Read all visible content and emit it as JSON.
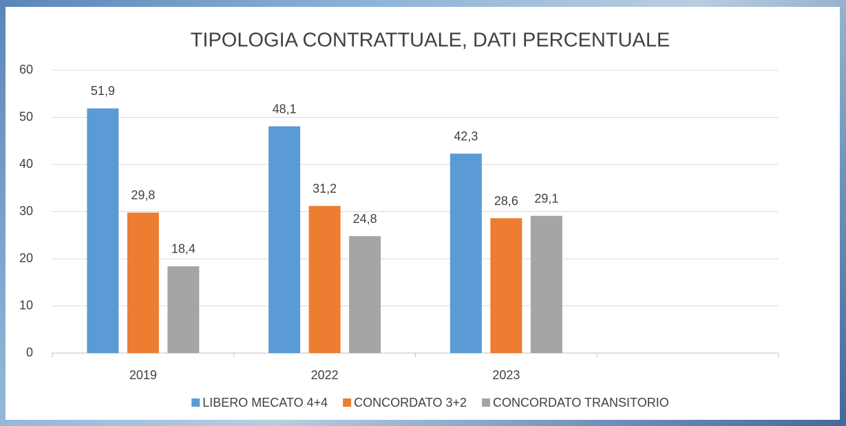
{
  "chart_data": {
    "type": "bar",
    "title": "TIPOLOGIA CONTRATTUALE, DATI PERCENTUALE",
    "categories": [
      "2019",
      "2022",
      "2023",
      null
    ],
    "series": [
      {
        "name": "LIBERO MECATO 4+4",
        "color": "#5b9bd5",
        "values": [
          51.9,
          48.1,
          42.3,
          null
        ],
        "value_labels": [
          "51,9",
          "48,1",
          "42,3",
          null
        ]
      },
      {
        "name": "CONCORDATO 3+2",
        "color": "#ed7d31",
        "values": [
          29.8,
          31.2,
          28.6,
          null
        ],
        "value_labels": [
          "29,8",
          "31,2",
          "28,6",
          null
        ]
      },
      {
        "name": "CONCORDATO TRANSITORIO",
        "color": "#a5a5a5",
        "values": [
          18.4,
          24.8,
          29.1,
          null
        ],
        "value_labels": [
          "18,4",
          "24,8",
          "29,1",
          null
        ]
      }
    ],
    "ylim": [
      0,
      60
    ],
    "yticks": [
      0,
      10,
      20,
      30,
      40,
      50,
      60
    ],
    "grid": true,
    "legend": "bottom"
  }
}
